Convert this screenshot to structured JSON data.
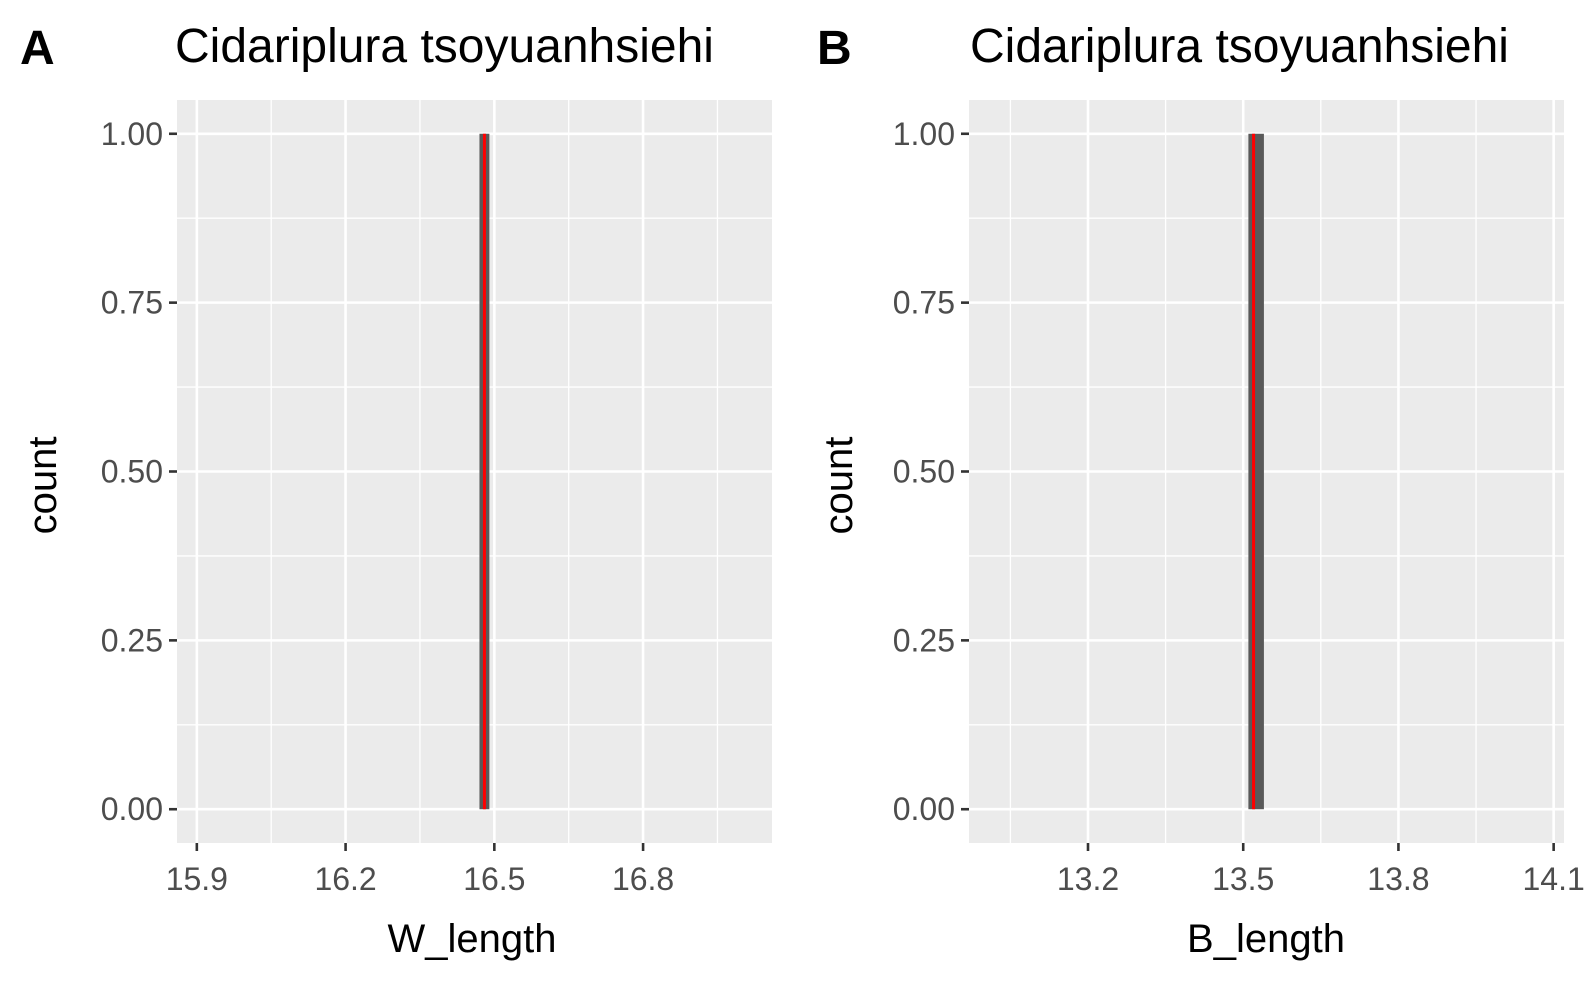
{
  "chart_data": [
    {
      "panel_label": "A",
      "type": "bar",
      "title": "Cidariplura tsoyuanhsiehi",
      "xlabel": "W_length",
      "ylabel": "count",
      "xlim": [
        15.86,
        17.06
      ],
      "ylim": [
        -0.05,
        1.05
      ],
      "x_ticks": [
        15.9,
        16.2,
        16.5,
        16.8
      ],
      "x_tick_labels": [
        "15.9",
        "16.2",
        "16.5",
        "16.8"
      ],
      "y_ticks": [
        0,
        0.25,
        0.5,
        0.75,
        1
      ],
      "y_tick_labels": [
        "0.00",
        "0.25",
        "0.50",
        "0.75",
        "1.00"
      ],
      "bars": [
        {
          "x_start": 16.47,
          "x_end": 16.49,
          "count": 1
        }
      ],
      "reference_line": {
        "x": 16.48,
        "color": "#ff0000"
      },
      "bar_color": "#595959",
      "panel_background": "#ebebeb",
      "grid": true
    },
    {
      "panel_label": "B",
      "type": "bar",
      "title": "Cidariplura tsoyuanhsiehi",
      "xlabel": "B_length",
      "ylabel": "count",
      "xlim": [
        12.97,
        14.12
      ],
      "ylim": [
        -0.05,
        1.05
      ],
      "x_ticks": [
        13.2,
        13.5,
        13.8,
        14.1
      ],
      "x_tick_labels": [
        "13.2",
        "13.5",
        "13.8",
        "14.1"
      ],
      "y_ticks": [
        0,
        0.25,
        0.5,
        0.75,
        1
      ],
      "y_tick_labels": [
        "0.00",
        "0.25",
        "0.50",
        "0.75",
        "1.00"
      ],
      "bars": [
        {
          "x_start": 13.51,
          "x_end": 13.54,
          "count": 1
        }
      ],
      "reference_line": {
        "x": 13.52,
        "color": "#ff0000"
      },
      "bar_color": "#595959",
      "panel_background": "#ebebeb",
      "grid": true
    }
  ]
}
